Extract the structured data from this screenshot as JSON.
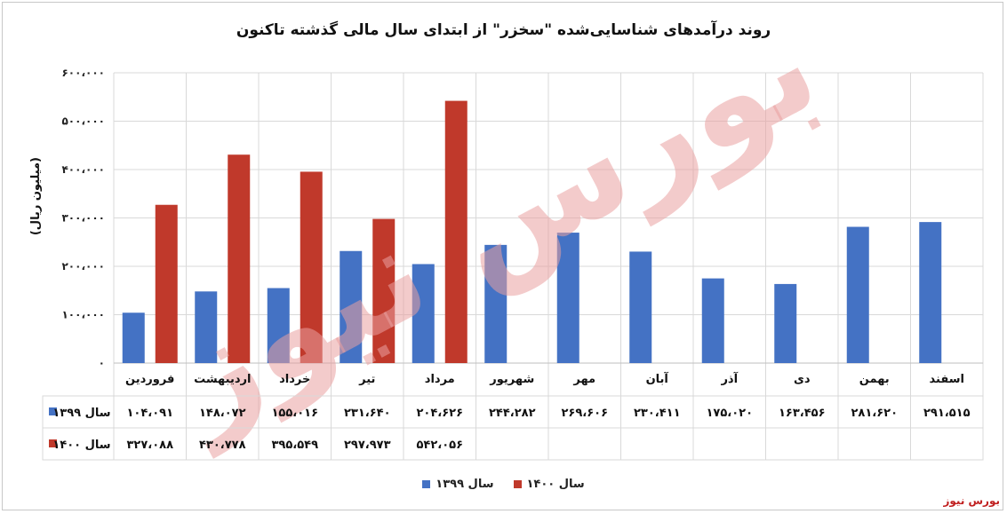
{
  "chart_data": {
    "type": "bar",
    "title": "روند درآمدهای شناسایی‌شده \"سخزر\" از ابتدای سال مالی گذشته تاکنون",
    "ylabel": "(میلیون ریال)",
    "ylim": [
      0,
      600000
    ],
    "yticks": [
      "۰",
      "۱۰۰،۰۰۰",
      "۲۰۰،۰۰۰",
      "۳۰۰،۰۰۰",
      "۴۰۰،۰۰۰",
      "۵۰۰،۰۰۰",
      "۶۰۰،۰۰۰"
    ],
    "grid": true,
    "legend_position": "bottom",
    "categories": [
      "فروردین",
      "اردیبهشت",
      "خرداد",
      "تیر",
      "مرداد",
      "شهریور",
      "مهر",
      "آبان",
      "آذر",
      "دی",
      "بهمن",
      "اسفند"
    ],
    "series": [
      {
        "name": "سال ۱۳۹۹",
        "color": "#4472c4",
        "values": [
          104091,
          148072,
          155016,
          231640,
          204626,
          244282,
          269606,
          230411,
          175020,
          163456,
          281620,
          291515
        ],
        "labels": [
          "۱۰۴،۰۹۱",
          "۱۴۸،۰۷۲",
          "۱۵۵،۰۱۶",
          "۲۳۱،۶۴۰",
          "۲۰۴،۶۲۶",
          "۲۴۴،۲۸۲",
          "۲۶۹،۶۰۶",
          "۲۳۰،۴۱۱",
          "۱۷۵،۰۲۰",
          "۱۶۳،۴۵۶",
          "۲۸۱،۶۲۰",
          "۲۹۱،۵۱۵"
        ]
      },
      {
        "name": "سال ۱۴۰۰",
        "color": "#c0392b",
        "values": [
          327088,
          430778,
          395549,
          297973,
          542056,
          null,
          null,
          null,
          null,
          null,
          null,
          null
        ],
        "labels": [
          "۳۲۷،۰۸۸",
          "۴۳۰،۷۷۸",
          "۳۹۵،۵۴۹",
          "۲۹۷،۹۷۳",
          "۵۴۲،۰۵۶",
          "",
          "",
          "",
          "",
          "",
          "",
          ""
        ]
      }
    ]
  },
  "watermark": "بورس نیوز",
  "source": "بورس نیوز"
}
